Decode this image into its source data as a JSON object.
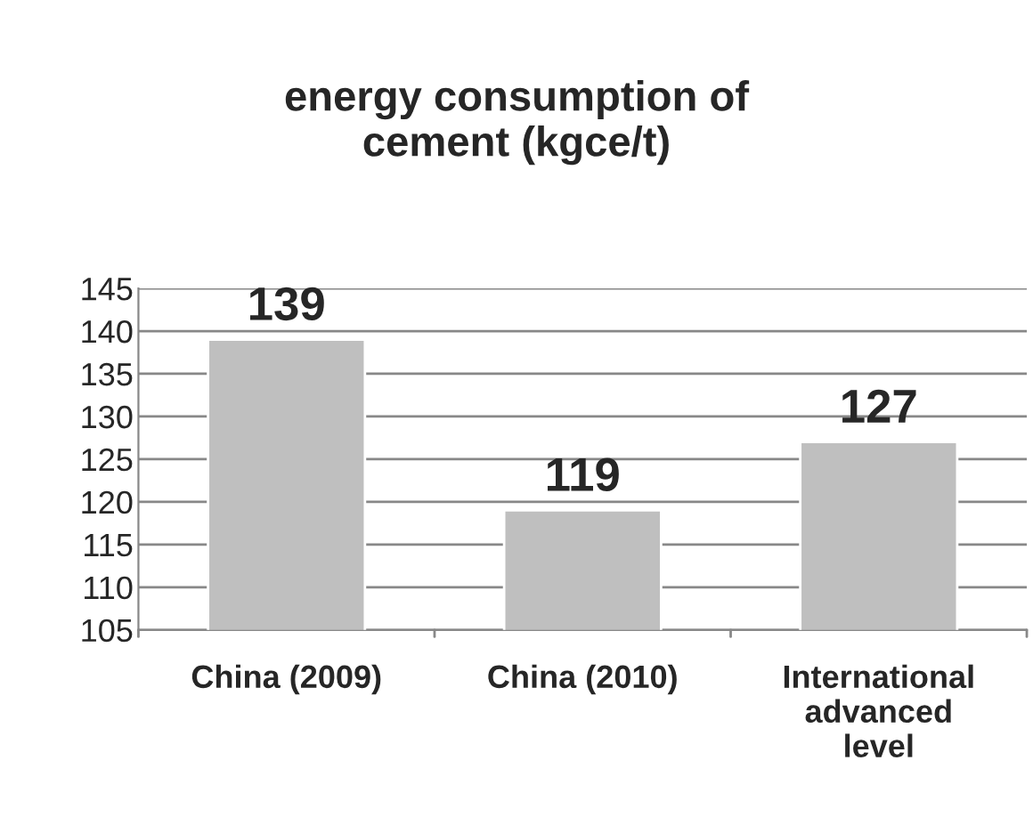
{
  "chart_data": {
    "type": "bar",
    "title": "energy consumption of\ncement (kgce/t)",
    "categories": [
      "China (2009)",
      "China (2010)",
      "International\nadvanced\nlevel"
    ],
    "values": [
      139,
      119,
      127
    ],
    "color": "#bfbfbf",
    "data_labels": true,
    "ylim": [
      105,
      145
    ],
    "yticks": [
      105,
      110,
      115,
      120,
      125,
      130,
      135,
      140,
      145
    ],
    "grid": "y",
    "legend": false
  }
}
